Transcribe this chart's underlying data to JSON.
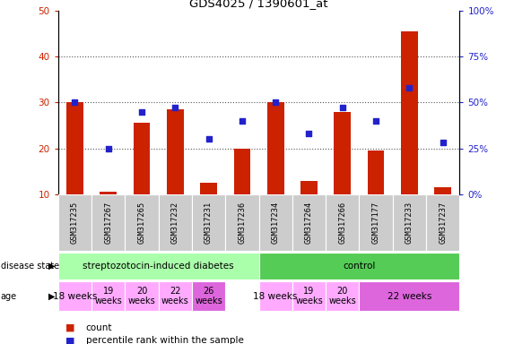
{
  "title": "GDS4025 / 1390601_at",
  "samples": [
    "GSM317235",
    "GSM317267",
    "GSM317265",
    "GSM317232",
    "GSM317231",
    "GSM317236",
    "GSM317234",
    "GSM317264",
    "GSM317266",
    "GSM317177",
    "GSM317233",
    "GSM317237"
  ],
  "counts": [
    30,
    10.5,
    25.5,
    28.5,
    12.5,
    20,
    30,
    13,
    28,
    19.5,
    45.5,
    11.5
  ],
  "percentile_ranks": [
    50,
    25,
    45,
    47,
    30,
    40,
    50,
    33,
    47,
    40,
    58,
    28
  ],
  "ylim_left": [
    10,
    50
  ],
  "ylim_right": [
    0,
    100
  ],
  "yticks_left": [
    10,
    20,
    30,
    40,
    50
  ],
  "yticks_right": [
    0,
    25,
    50,
    75,
    100
  ],
  "bar_color": "#cc2200",
  "dot_color": "#2222cc",
  "bar_width": 0.5,
  "disease_state_groups": [
    {
      "label": "streptozotocin-induced diabetes",
      "start": 0,
      "end": 6,
      "color": "#aaffaa"
    },
    {
      "label": "control",
      "start": 6,
      "end": 12,
      "color": "#55cc55"
    }
  ],
  "age_groups": [
    {
      "label": "18 weeks",
      "start": 0,
      "end": 1,
      "color": "#ffaaff",
      "fontsize": 7.5
    },
    {
      "label": "19\nweeks",
      "start": 1,
      "end": 2,
      "color": "#ffaaff",
      "fontsize": 7
    },
    {
      "label": "20\nweeks",
      "start": 2,
      "end": 3,
      "color": "#ffaaff",
      "fontsize": 7
    },
    {
      "label": "22\nweeks",
      "start": 3,
      "end": 4,
      "color": "#ffaaff",
      "fontsize": 7
    },
    {
      "label": "26\nweeks",
      "start": 4,
      "end": 5,
      "color": "#dd66dd",
      "fontsize": 7
    },
    {
      "label": "18 weeks",
      "start": 6,
      "end": 7,
      "color": "#ffaaff",
      "fontsize": 7.5
    },
    {
      "label": "19\nweeks",
      "start": 7,
      "end": 8,
      "color": "#ffaaff",
      "fontsize": 7
    },
    {
      "label": "20\nweeks",
      "start": 8,
      "end": 9,
      "color": "#ffaaff",
      "fontsize": 7
    },
    {
      "label": "22 weeks",
      "start": 9,
      "end": 12,
      "color": "#dd66dd",
      "fontsize": 7.5
    }
  ],
  "legend_bar_label": "count",
  "legend_dot_label": "percentile rank within the sample",
  "ylabel_left_color": "#cc2200",
  "ylabel_right_color": "#2222cc",
  "grid_color": "#555555",
  "tick_area_bg": "#cccccc"
}
